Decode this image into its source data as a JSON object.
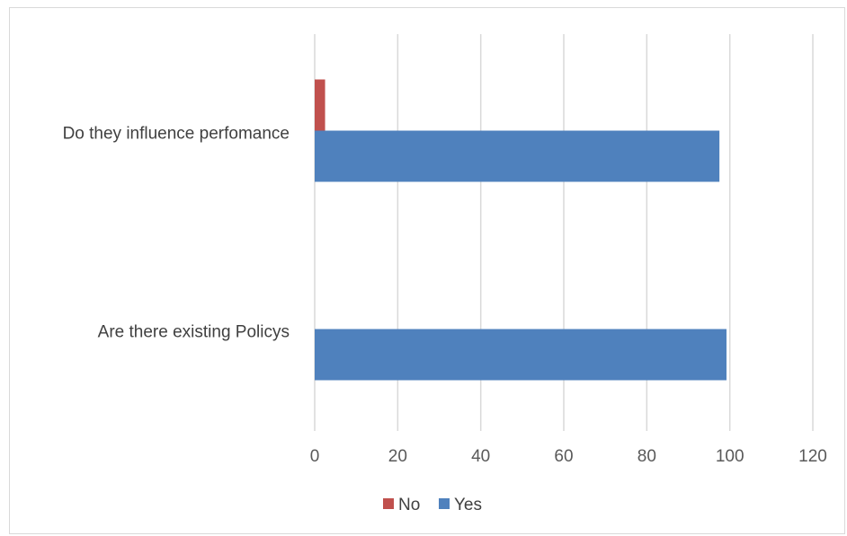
{
  "chart_data": {
    "type": "bar",
    "orientation": "horizontal",
    "categories": [
      "Are there existing Policys",
      "Do they influence perfomance"
    ],
    "series": [
      {
        "name": "Yes",
        "color": "#4f81bd",
        "values": [
          99.2,
          97.5
        ]
      },
      {
        "name": "No",
        "color": "#c0504d",
        "values": [
          0,
          2.5
        ]
      }
    ],
    "x_ticks": [
      0,
      20,
      40,
      60,
      80,
      100,
      120
    ],
    "xlim": [
      0,
      120
    ],
    "grid": "vertical-major",
    "legend_position": "bottom"
  }
}
